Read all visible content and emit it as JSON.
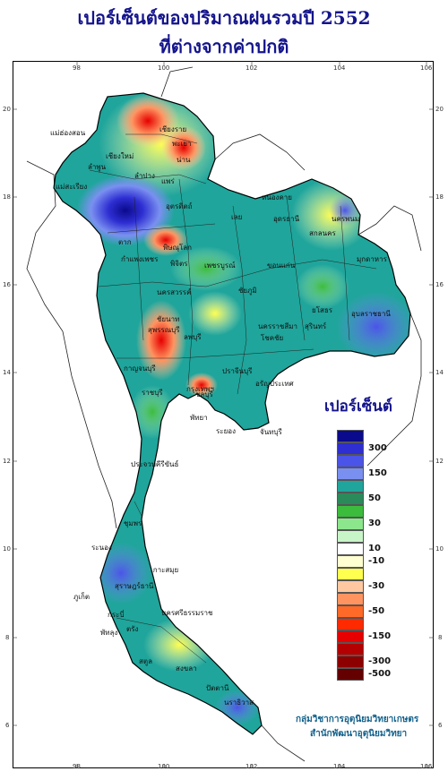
{
  "title_line1": "เปอร์เซ็นต์ของปริมาณฝนรวมปี 2552",
  "title_line2": "ที่ต่างจากค่าปกติ",
  "legend": {
    "title": "เปอร์เซ็นต์",
    "labels": [
      "300",
      "150",
      "50",
      "30",
      "10",
      "-10",
      "-30",
      "-50",
      "-150",
      "-300",
      "-500"
    ],
    "colors": [
      "#0a0a8c",
      "#2e2ed2",
      "#4b54e8",
      "#7a90f0",
      "#1fa59b",
      "#2a8a5a",
      "#3cbc3c",
      "#8ce68c",
      "#c8f5c8",
      "#ffffff",
      "#ffffd2",
      "#ffff50",
      "#ffc8a0",
      "#ff9460",
      "#ff6a28",
      "#ff2a00",
      "#e60000",
      "#b40000",
      "#8c0000",
      "#640000"
    ]
  },
  "axis_top": [
    "98",
    "100",
    "102",
    "104",
    "106"
  ],
  "axis_left": [
    "20",
    "18",
    "16",
    "14",
    "12",
    "10",
    "8",
    "6"
  ],
  "places": [
    {
      "name": "เชียงราย"
    },
    {
      "name": "แม่ฮ่องสอน"
    },
    {
      "name": "พะเยา"
    },
    {
      "name": "เชียงใหม่"
    },
    {
      "name": "ลำพูน"
    },
    {
      "name": "น่าน"
    },
    {
      "name": "ลำปาง"
    },
    {
      "name": "แพร่"
    },
    {
      "name": "แม่สะเรียง"
    },
    {
      "name": "อุตรดิตถ์"
    },
    {
      "name": "หนองคาย"
    },
    {
      "name": "นครพนม"
    },
    {
      "name": "เลย"
    },
    {
      "name": "อุดรธานี"
    },
    {
      "name": "สกลนคร"
    },
    {
      "name": "ตาก"
    },
    {
      "name": "พิษณุโลก"
    },
    {
      "name": "มุกดาหาร"
    },
    {
      "name": "กำแพงเพชร"
    },
    {
      "name": "พิจิตร"
    },
    {
      "name": "เพชรบูรณ์"
    },
    {
      "name": "ขอนแก่น"
    },
    {
      "name": "นครสวรรค์"
    },
    {
      "name": "ชัยภูมิ"
    },
    {
      "name": "ยโสธร"
    },
    {
      "name": "อุบลราชธานี"
    },
    {
      "name": "ลพบุรี"
    },
    {
      "name": "นครราชสีมา"
    },
    {
      "name": "สุรินทร์"
    },
    {
      "name": "สุพรรณบุรี"
    },
    {
      "name": "ชัยนาท"
    },
    {
      "name": "โชคชัย"
    },
    {
      "name": "กาญจนบุรี"
    },
    {
      "name": "ปราจีนบุรี"
    },
    {
      "name": "กรุงเทพฯ"
    },
    {
      "name": "อรัญประเทศ"
    },
    {
      "name": "ราชบุรี"
    },
    {
      "name": "ชลบุรี"
    },
    {
      "name": "พัทยา"
    },
    {
      "name": "ระยอง"
    },
    {
      "name": "จันทบุรี"
    },
    {
      "name": "ประจวบคีรีขันธ์"
    },
    {
      "name": "ชุมพร"
    },
    {
      "name": "ระนอง"
    },
    {
      "name": "เกาะสมุย"
    },
    {
      "name": "สุราษฎร์ธานี"
    },
    {
      "name": "ภูเก็ต"
    },
    {
      "name": "นครศรีธรรมราช"
    },
    {
      "name": "กระบี่"
    },
    {
      "name": "ตรัง"
    },
    {
      "name": "สงขลา"
    },
    {
      "name": "ปัตตานี"
    },
    {
      "name": "นราธิวาส"
    },
    {
      "name": "พัทลุง"
    },
    {
      "name": "สตูล"
    }
  ],
  "credit_line1": "กลุ่มวิชาการอุตุนิยมวิทยาเกษตร",
  "credit_line2": "สำนักพัฒนาอุตุนิยมวิทยา"
}
